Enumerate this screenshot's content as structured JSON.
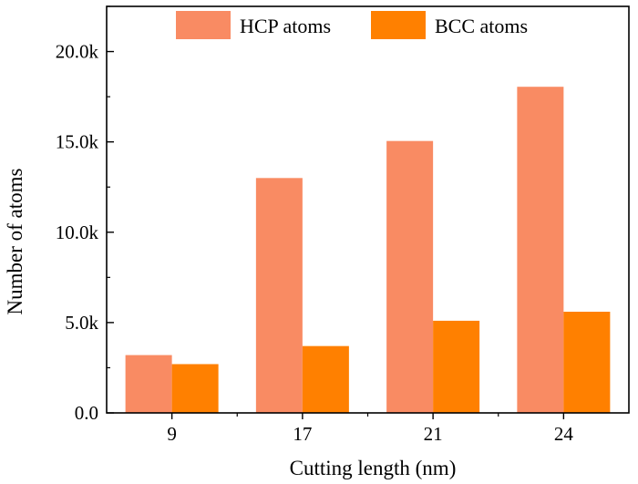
{
  "chart_data": {
    "type": "bar",
    "xlabel": "Cutting length (nm)",
    "ylabel": "Number of atoms",
    "categories": [
      "9",
      "17",
      "21",
      "24"
    ],
    "series": [
      {
        "name": "HCP atoms",
        "values": [
          3200,
          13000,
          15050,
          18050
        ],
        "color": "#F98B63"
      },
      {
        "name": "BCC atoms",
        "values": [
          2700,
          3700,
          5100,
          5600
        ],
        "color": "#FF8000"
      }
    ],
    "ylim": [
      0,
      22500
    ],
    "yticks": [
      0,
      5000,
      10000,
      15000,
      20000
    ],
    "ytick_labels": [
      "0.0",
      "5.0k",
      "10.0k",
      "15.0k",
      "20.0k"
    ],
    "legend": {
      "placement": "top-center",
      "orientation": "horizontal"
    },
    "grid": false
  }
}
